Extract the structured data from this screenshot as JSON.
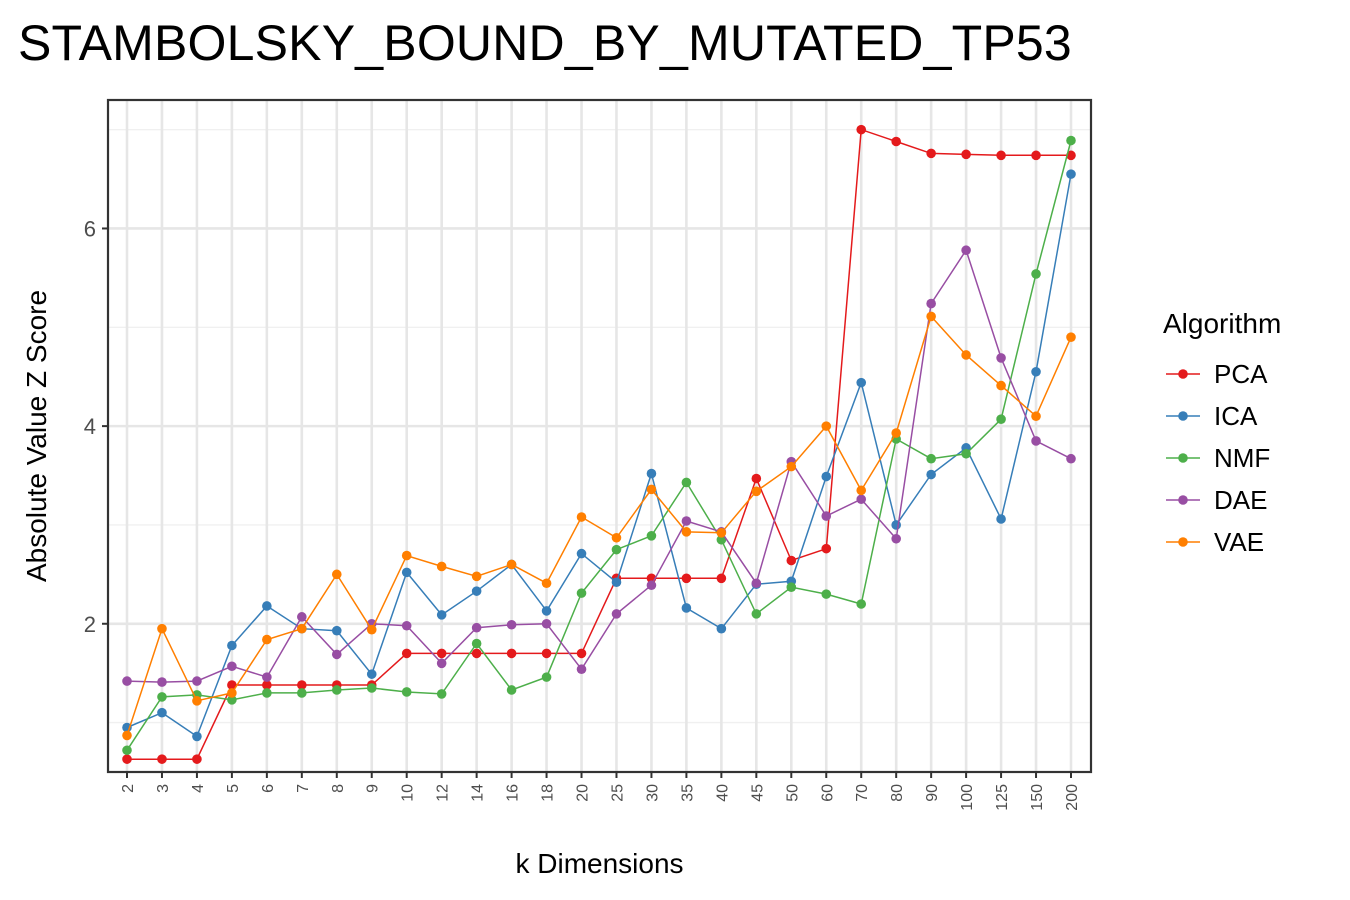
{
  "chart_data": {
    "type": "line",
    "title": "STAMBOLSKY_BOUND_BY_MUTATED_TP53",
    "xlabel": "k Dimensions",
    "ylabel": "Absolute Value Z Score",
    "categories": [
      "2",
      "3",
      "4",
      "5",
      "6",
      "7",
      "8",
      "9",
      "10",
      "12",
      "14",
      "16",
      "18",
      "20",
      "25",
      "30",
      "35",
      "40",
      "45",
      "50",
      "60",
      "70",
      "80",
      "90",
      "100",
      "125",
      "150",
      "200"
    ],
    "ylim": [
      0.5,
      7.3
    ],
    "yticks": [
      2,
      4,
      6
    ],
    "grid": true,
    "legend_title": "Algorithm",
    "legend_position": "right",
    "series": [
      {
        "name": "PCA",
        "color": "#e41a1c",
        "values": [
          0.63,
          0.63,
          0.63,
          1.38,
          1.38,
          1.38,
          1.38,
          1.38,
          1.7,
          1.7,
          1.7,
          1.7,
          1.7,
          1.7,
          2.46,
          2.46,
          2.46,
          2.46,
          3.47,
          2.64,
          2.76,
          7.0,
          6.88,
          6.76,
          6.75,
          6.74,
          6.74,
          6.74
        ]
      },
      {
        "name": "ICA",
        "color": "#377eb8",
        "values": [
          0.95,
          1.1,
          0.86,
          1.78,
          2.18,
          1.95,
          1.93,
          1.49,
          2.52,
          2.09,
          2.33,
          2.6,
          2.13,
          2.71,
          2.42,
          3.52,
          2.16,
          1.95,
          2.4,
          2.43,
          3.49,
          4.44,
          3.0,
          3.51,
          3.78,
          3.06,
          4.55,
          6.55
        ]
      },
      {
        "name": "NMF",
        "color": "#4daf4a",
        "values": [
          0.72,
          1.26,
          1.28,
          1.23,
          1.3,
          1.3,
          1.33,
          1.35,
          1.31,
          1.29,
          1.8,
          1.33,
          1.46,
          2.31,
          2.75,
          2.89,
          3.43,
          2.85,
          2.1,
          2.37,
          2.3,
          2.2,
          3.87,
          3.67,
          3.72,
          4.07,
          5.54,
          6.89
        ]
      },
      {
        "name": "DAE",
        "color": "#984ea3",
        "values": [
          1.42,
          1.41,
          1.42,
          1.57,
          1.46,
          2.07,
          1.69,
          2.0,
          1.98,
          1.6,
          1.96,
          1.99,
          2.0,
          1.54,
          2.1,
          2.39,
          3.04,
          2.93,
          2.41,
          3.64,
          3.09,
          3.26,
          2.86,
          5.24,
          5.78,
          4.69,
          3.85,
          3.67
        ]
      },
      {
        "name": "VAE",
        "color": "#ff7f00",
        "values": [
          0.87,
          1.95,
          1.22,
          1.3,
          1.84,
          1.95,
          2.5,
          1.94,
          2.69,
          2.58,
          2.48,
          2.6,
          2.41,
          3.08,
          2.87,
          3.36,
          2.93,
          2.92,
          3.34,
          3.59,
          4.0,
          3.35,
          3.93,
          5.11,
          4.72,
          4.41,
          4.1,
          4.9
        ]
      }
    ]
  }
}
